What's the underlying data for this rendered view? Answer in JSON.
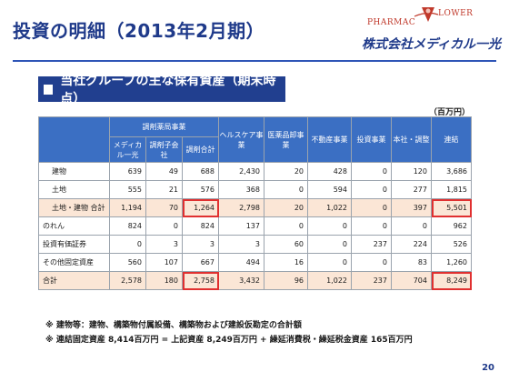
{
  "header": {
    "title": "投資の明細（2013年2月期）",
    "logo_brand_left": "PHARMAC",
    "logo_brand_right": "LOWER",
    "company_name": "株式会社メディカル一光"
  },
  "section": {
    "title": "当社グループの主な保有資産（期末時点）",
    "unit": "（百万円）"
  },
  "table": {
    "group_header": "調剤薬局事業",
    "sub_headers": [
      "メディカル一光",
      "調剤子会社",
      "調剤合計"
    ],
    "columns": [
      "ヘルスケア事業",
      "医薬品卸事業",
      "不動産事業",
      "投資事業",
      "本社・調整",
      "連結"
    ],
    "rows": [
      {
        "label": "建物",
        "indent": true,
        "values": [
          "639",
          "49",
          "688",
          "2,430",
          "20",
          "428",
          "0",
          "120",
          "3,686"
        ]
      },
      {
        "label": "土地",
        "indent": true,
        "values": [
          "555",
          "21",
          "576",
          "368",
          "0",
          "594",
          "0",
          "277",
          "1,815"
        ]
      },
      {
        "label": "土地・建物 合計",
        "indent": true,
        "values": [
          "1,194",
          "70",
          "1,264",
          "2,798",
          "20",
          "1,022",
          "0",
          "397",
          "5,501"
        ]
      },
      {
        "label": "のれん",
        "indent": false,
        "values": [
          "824",
          "0",
          "824",
          "137",
          "0",
          "0",
          "0",
          "0",
          "962"
        ]
      },
      {
        "label": "投資有価証券",
        "indent": false,
        "values": [
          "0",
          "3",
          "3",
          "3",
          "60",
          "0",
          "237",
          "224",
          "526"
        ]
      },
      {
        "label": "その他固定資産",
        "indent": false,
        "values": [
          "560",
          "107",
          "667",
          "494",
          "16",
          "0",
          "0",
          "83",
          "1,260"
        ]
      },
      {
        "label": "合計",
        "indent": false,
        "values": [
          "2,578",
          "180",
          "2,758",
          "3,432",
          "96",
          "1,022",
          "237",
          "704",
          "8,249"
        ]
      }
    ]
  },
  "notes": [
    "※ 建物等：建物、構築物付属設備、構築物および建設仮勘定の合計額",
    "※ 連結固定資産 8,414百万円 = 上記資産 8,249百万円 + 繰延消費税・繰延税金資産 165百万円"
  ],
  "page_number": "20",
  "colors": {
    "accent": "#1f3a8a",
    "header_fill": "#3b6fc3",
    "highlight": "#fbe6d6",
    "alert": "#e03030"
  }
}
